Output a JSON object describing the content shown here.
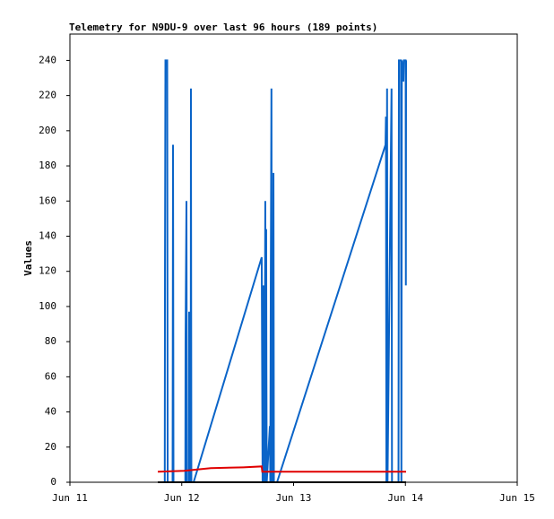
{
  "chart_data": {
    "type": "line",
    "title": "Telemetry for N9DU-9 over last 96 hours (189 points)",
    "y_label": "Values",
    "xlim": [
      11,
      15
    ],
    "xticks": [
      {
        "value": 11,
        "label": "Jun 11"
      },
      {
        "value": 12,
        "label": "Jun 12"
      },
      {
        "value": 13,
        "label": "Jun 13"
      },
      {
        "value": 14,
        "label": "Jun 14"
      },
      {
        "value": 15,
        "label": "Jun 15"
      }
    ],
    "ylim": [
      0,
      255
    ],
    "yticks": [
      0,
      20,
      40,
      60,
      80,
      100,
      120,
      140,
      160,
      180,
      200,
      220,
      240
    ],
    "grid": false,
    "series": [
      {
        "color": "#0a64c8",
        "x": [
          11.848,
          11.85,
          11.854,
          11.87,
          11.874,
          11.918,
          11.922,
          11.926,
          12.032,
          12.034,
          12.042,
          12.046,
          12.064,
          12.066,
          12.07,
          12.08,
          12.082,
          12.086,
          12.106,
          12.715,
          12.723,
          12.731,
          12.739,
          12.747,
          12.751,
          12.755,
          12.757,
          12.76,
          12.788,
          12.792,
          12.796,
          12.802,
          12.806,
          12.818,
          12.82,
          12.824,
          12.852,
          13.822,
          13.826,
          13.83,
          13.836,
          13.84,
          13.876,
          13.88,
          13.938,
          13.942,
          13.96,
          13.964,
          13.968,
          13.982,
          13.986,
          14.002,
          14.004,
          14.006
        ],
        "values": [
          0,
          120,
          240,
          240,
          0,
          0,
          192,
          0,
          0,
          80,
          160,
          0,
          0,
          97,
          0,
          0,
          224,
          0,
          0,
          128,
          0,
          112,
          0,
          160,
          0,
          144,
          64,
          0,
          32,
          0,
          112,
          224,
          0,
          0,
          176,
          0,
          0,
          192,
          208,
          0,
          224,
          0,
          224,
          0,
          0,
          240,
          240,
          0,
          240,
          228,
          240,
          240,
          112,
          240
        ]
      },
      {
        "color": "#e00000",
        "x": [
          11.786,
          12.02,
          12.26,
          12.55,
          12.715,
          12.72,
          14.006
        ],
        "values": [
          6,
          6.5,
          8,
          8.5,
          9,
          6,
          6
        ]
      },
      {
        "color": "#000000",
        "x": [
          11.786,
          14.006
        ],
        "values": [
          0,
          0
        ]
      }
    ]
  }
}
